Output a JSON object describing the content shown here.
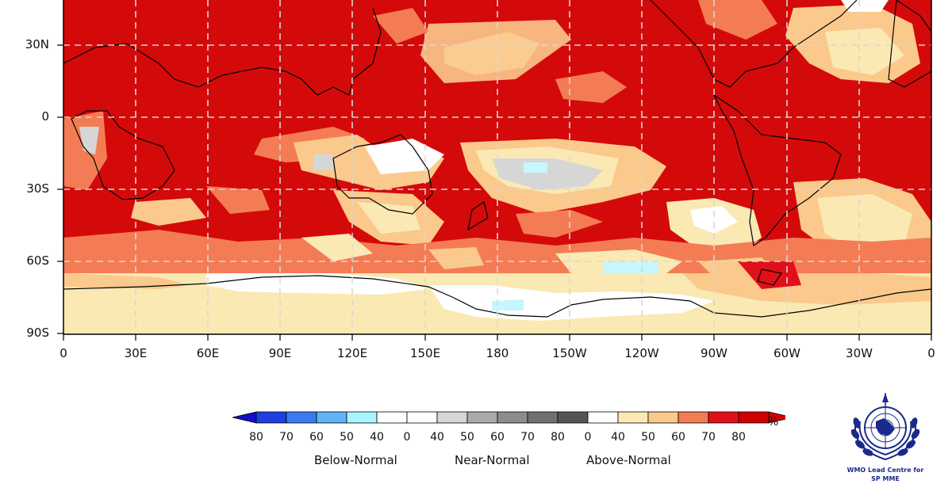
{
  "map": {
    "lat_labels": [
      "30N",
      "0",
      "30S",
      "60S",
      "90S"
    ],
    "lon_labels": [
      "0",
      "30E",
      "60E",
      "90E",
      "120E",
      "150E",
      "180",
      "150W",
      "120W",
      "90W",
      "60W",
      "30W",
      "0"
    ]
  },
  "legend": {
    "unit": "%",
    "numbers": [
      "80",
      "70",
      "60",
      "50",
      "40",
      "0",
      "40",
      "50",
      "60",
      "70",
      "80",
      "0",
      "40",
      "50",
      "60",
      "70",
      "80"
    ],
    "categories": [
      "Below-Normal",
      "Near-Normal",
      "Above-Normal"
    ],
    "colors": [
      "#1f3fe0",
      "#3a7cf0",
      "#5fb4f8",
      "#a8f4ff",
      "#ffffff",
      "#ffffff",
      "#d6d6d6",
      "#ababab",
      "#8c8c8c",
      "#707070",
      "#555555",
      "#ffffff",
      "#fbe9b4",
      "#fbc98c",
      "#f47c54",
      "#e0101a",
      "#d00000"
    ],
    "under_color": "#1010c8",
    "over_color": "#d00000"
  },
  "logo": {
    "line1": "WMO Lead Centre for",
    "line2": "SP MME"
  }
}
